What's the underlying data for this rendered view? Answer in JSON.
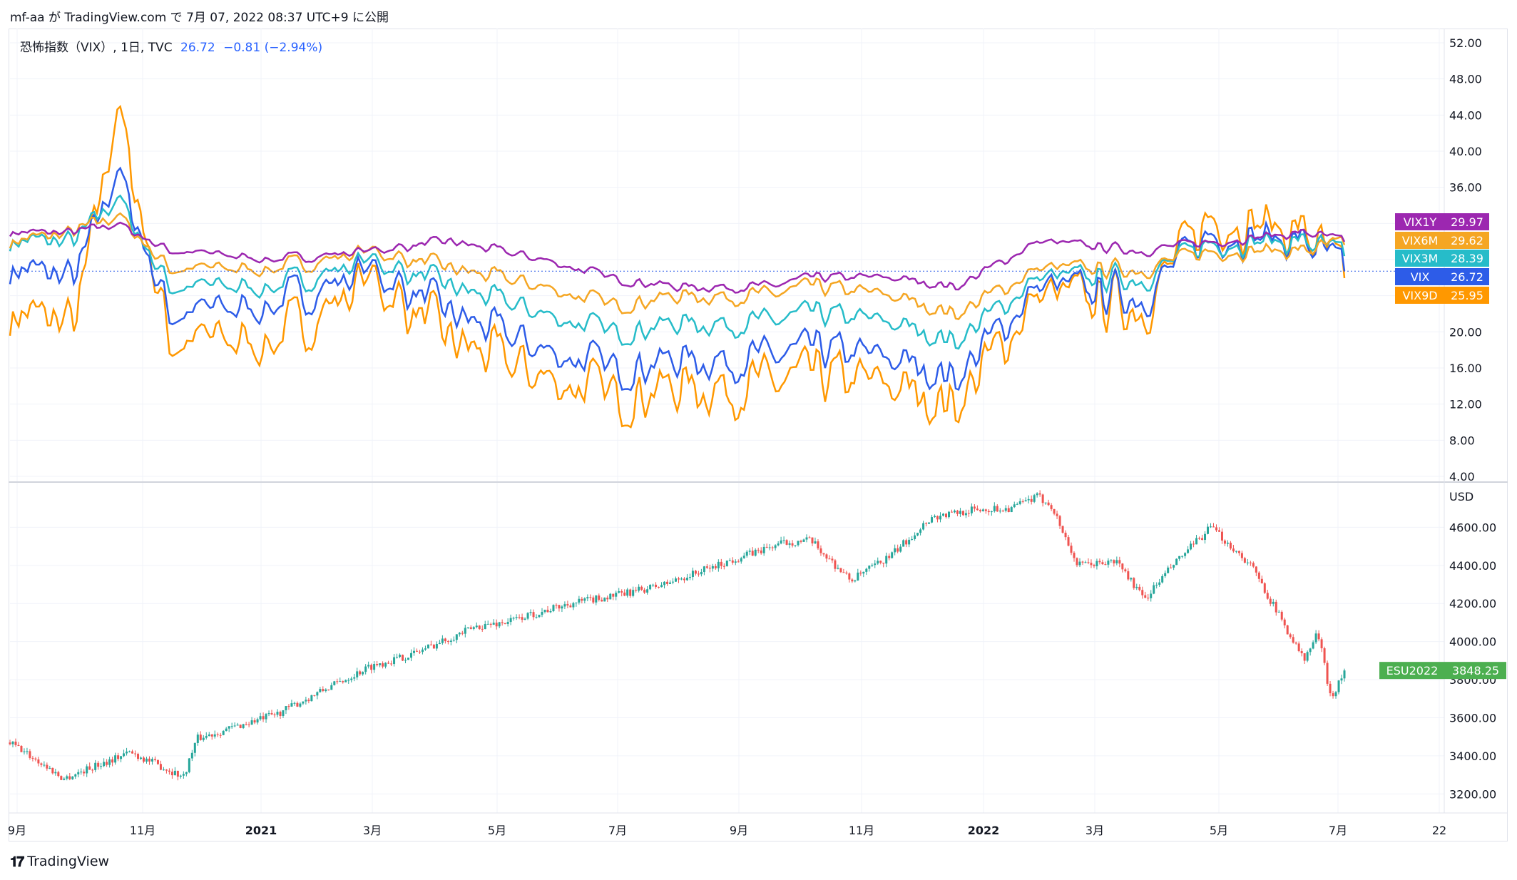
{
  "caption": "mf-aa が TradingView.com で 7月 07, 2022 08:37 UTC+9 に公開",
  "legend": {
    "title": "恐怖指数（VIX）, 1日, TVC",
    "value": "26.72",
    "change": "−0.81 (−2.94%)"
  },
  "footer": {
    "brand": "TradingView"
  },
  "colors": {
    "VIX1Y": "#9c27b0",
    "VIX6M": "#f5a623",
    "VIX3M": "#26bcc9",
    "VIX": "#2d5ce8",
    "VIX9D": "#ff9800",
    "ESU2022_up": "#26a69a",
    "ESU2022_down": "#ef5350",
    "ESU2022_tag": "#4caf50"
  },
  "chart_data": [
    {
      "type": "line",
      "title": "恐怖指数（VIX）, 1日, TVC",
      "x_ticks": [
        "9月",
        "11月",
        "2021",
        "3月",
        "5月",
        "7月",
        "9月",
        "11月",
        "2022",
        "3月",
        "5月",
        "7月",
        "22"
      ],
      "y_ticks": [
        "4.00",
        "8.00",
        "12.00",
        "16.00",
        "20.00",
        "24.00",
        "28.00",
        "32.00",
        "36.00",
        "40.00",
        "44.00",
        "48.00",
        "52.00"
      ],
      "ylim": [
        4,
        52
      ],
      "grid": true,
      "price_line": 26.72,
      "series": [
        {
          "name": "VIX1Y",
          "last": "29.97",
          "anchors": [
            [
              0,
              31
            ],
            [
              0.05,
              31
            ],
            [
              0.08,
              32
            ],
            [
              0.12,
              29
            ],
            [
              0.2,
              28
            ],
            [
              0.27,
              29
            ],
            [
              0.33,
              30
            ],
            [
              0.4,
              28
            ],
            [
              0.45,
              26
            ],
            [
              0.5,
              25
            ],
            [
              0.57,
              25
            ],
            [
              0.6,
              26
            ],
            [
              0.66,
              26
            ],
            [
              0.71,
              25
            ],
            [
              0.77,
              30
            ],
            [
              0.85,
              29
            ],
            [
              0.9,
              30
            ],
            [
              0.97,
              31
            ],
            [
              1,
              30
            ]
          ]
        },
        {
          "name": "VIX6M",
          "last": "29.62",
          "anchors": [
            [
              0,
              30
            ],
            [
              0.05,
              31
            ],
            [
              0.08,
              33
            ],
            [
              0.12,
              27
            ],
            [
              0.2,
              27
            ],
            [
              0.27,
              29
            ],
            [
              0.33,
              27
            ],
            [
              0.4,
              25
            ],
            [
              0.45,
              23
            ],
            [
              0.5,
              24
            ],
            [
              0.57,
              24
            ],
            [
              0.6,
              25
            ],
            [
              0.66,
              24
            ],
            [
              0.71,
              22
            ],
            [
              0.77,
              27
            ],
            [
              0.85,
              27
            ],
            [
              0.9,
              29
            ],
            [
              0.97,
              29
            ],
            [
              1,
              29.6
            ]
          ]
        },
        {
          "name": "VIX3M",
          "last": "28.39",
          "anchors": [
            [
              0,
              30
            ],
            [
              0.05,
              30
            ],
            [
              0.08,
              35
            ],
            [
              0.12,
              25
            ],
            [
              0.2,
              25
            ],
            [
              0.27,
              28
            ],
            [
              0.33,
              25
            ],
            [
              0.4,
              22
            ],
            [
              0.45,
              20
            ],
            [
              0.5,
              21
            ],
            [
              0.57,
              21
            ],
            [
              0.6,
              22
            ],
            [
              0.66,
              21
            ],
            [
              0.71,
              19
            ],
            [
              0.77,
              26
            ],
            [
              0.85,
              26
            ],
            [
              0.9,
              30
            ],
            [
              0.97,
              30
            ],
            [
              1,
              28.4
            ]
          ]
        },
        {
          "name": "VIX",
          "last": "26.72",
          "anchors": [
            [
              0,
              27
            ],
            [
              0.05,
              26
            ],
            [
              0.08,
              38
            ],
            [
              0.12,
              22
            ],
            [
              0.2,
              23
            ],
            [
              0.27,
              27
            ],
            [
              0.33,
              22
            ],
            [
              0.4,
              18
            ],
            [
              0.45,
              16
            ],
            [
              0.5,
              17
            ],
            [
              0.57,
              17
            ],
            [
              0.6,
              18
            ],
            [
              0.66,
              17
            ],
            [
              0.71,
              15
            ],
            [
              0.77,
              25
            ],
            [
              0.85,
              24
            ],
            [
              0.9,
              31
            ],
            [
              0.97,
              30
            ],
            [
              1,
              26.7
            ]
          ]
        },
        {
          "name": "VIX9D",
          "last": "25.95",
          "anchors": [
            [
              0,
              22
            ],
            [
              0.05,
              21
            ],
            [
              0.08,
              45
            ],
            [
              0.12,
              19
            ],
            [
              0.2,
              19
            ],
            [
              0.27,
              26
            ],
            [
              0.33,
              19
            ],
            [
              0.4,
              15
            ],
            [
              0.45,
              13
            ],
            [
              0.5,
              14
            ],
            [
              0.57,
              14
            ],
            [
              0.6,
              15
            ],
            [
              0.66,
              14
            ],
            [
              0.71,
              12
            ],
            [
              0.77,
              24
            ],
            [
              0.85,
              23
            ],
            [
              0.9,
              33
            ],
            [
              0.97,
              31
            ],
            [
              1,
              25.95
            ]
          ]
        }
      ]
    },
    {
      "type": "candlestick",
      "name": "ESU2022",
      "last": "3848.25",
      "y_unit": "USD",
      "y_ticks": [
        "3200.00",
        "3400.00",
        "3600.00",
        "3800.00",
        "4000.00",
        "4200.00",
        "4400.00",
        "4600.00"
      ],
      "ylim": [
        3100,
        4800
      ],
      "grid": true,
      "closes": [
        [
          0,
          3470
        ],
        [
          0.03,
          3330
        ],
        [
          0.04,
          3280
        ],
        [
          0.09,
          3420
        ],
        [
          0.13,
          3290
        ],
        [
          0.14,
          3490
        ],
        [
          0.2,
          3620
        ],
        [
          0.27,
          3870
        ],
        [
          0.3,
          3930
        ],
        [
          0.35,
          4080
        ],
        [
          0.37,
          4100
        ],
        [
          0.42,
          4200
        ],
        [
          0.46,
          4250
        ],
        [
          0.49,
          4300
        ],
        [
          0.55,
          4450
        ],
        [
          0.58,
          4520
        ],
        [
          0.6,
          4530
        ],
        [
          0.63,
          4320
        ],
        [
          0.66,
          4450
        ],
        [
          0.69,
          4650
        ],
        [
          0.72,
          4690
        ],
        [
          0.75,
          4700
        ],
        [
          0.77,
          4760
        ],
        [
          0.78,
          4720
        ],
        [
          0.8,
          4400
        ],
        [
          0.83,
          4420
        ],
        [
          0.85,
          4220
        ],
        [
          0.87,
          4390
        ],
        [
          0.9,
          4600
        ],
        [
          0.93,
          4400
        ],
        [
          0.95,
          4150
        ],
        [
          0.97,
          3900
        ],
        [
          0.98,
          4050
        ],
        [
          0.99,
          3700
        ],
        [
          1,
          3848
        ]
      ]
    }
  ]
}
